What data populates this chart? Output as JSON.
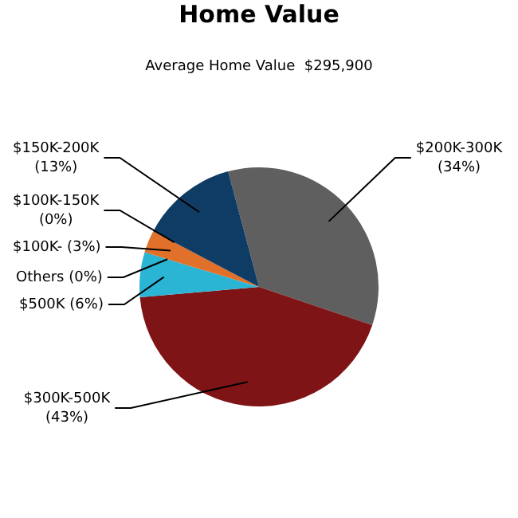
{
  "chart_data": {
    "type": "pie",
    "title": "Home Value",
    "subtitle": "Average Home Value  $295,900",
    "categories": [
      "$200K-300K",
      "$300K-500K",
      "$500K",
      "Others",
      "$100K-",
      "$100K-150K",
      "$150K-200K"
    ],
    "values": [
      34,
      43,
      6,
      0,
      3,
      0,
      13
    ],
    "value_labels": [
      "(34%)",
      "(43%)",
      "(6%)",
      "(0%)",
      "(3%)",
      "(0%)",
      "(13%)"
    ],
    "colors": [
      "#5f5f5f",
      "#7f1416",
      "#2bb5d4",
      "#2bb5d4",
      "#e0702a",
      "#e0702a",
      "#0f3c64"
    ]
  }
}
